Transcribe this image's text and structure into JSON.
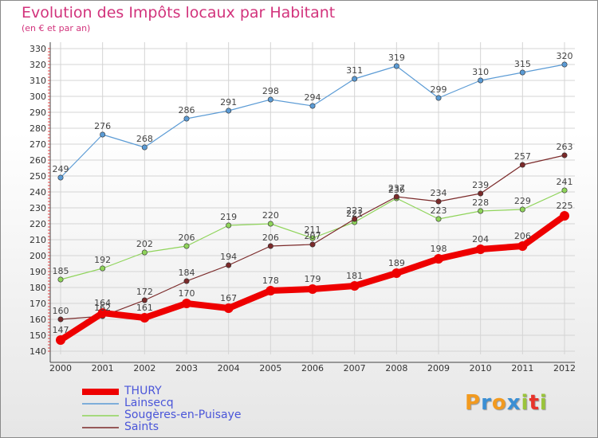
{
  "header": {
    "title": "Evolution des Impôts locaux par Habitant",
    "subtitle": "(en € et par an)"
  },
  "logo": {
    "letters": [
      {
        "ch": "P",
        "color": "#f29a1f"
      },
      {
        "ch": "r",
        "color": "#3a8fd4"
      },
      {
        "ch": "o",
        "color": "#f29a1f"
      },
      {
        "ch": "x",
        "color": "#3a8fd4"
      },
      {
        "ch": "i",
        "color": "#9ac43a"
      },
      {
        "ch": "t",
        "color": "#e8332a"
      },
      {
        "ch": "i",
        "color": "#9ac43a"
      }
    ]
  },
  "chart_data": {
    "type": "line",
    "x": [
      "2000",
      "2001",
      "2002",
      "2003",
      "2004",
      "2005",
      "2006",
      "2007",
      "2008",
      "2009",
      "2010",
      "2011",
      "2012"
    ],
    "ylim": [
      140,
      330
    ],
    "yticks": [
      140,
      150,
      160,
      170,
      180,
      190,
      200,
      210,
      220,
      230,
      240,
      250,
      260,
      270,
      280,
      290,
      300,
      310,
      320,
      330
    ],
    "grid": true,
    "legend_position": "bottom-left",
    "series": [
      {
        "name": "THURY",
        "color": "#ee0000",
        "emphasis": true,
        "values": [
          147,
          164,
          161,
          170,
          167,
          178,
          179,
          181,
          189,
          198,
          204,
          206,
          225
        ]
      },
      {
        "name": "Lainsecq",
        "color": "#5b9bd5",
        "emphasis": false,
        "values": [
          249,
          276,
          268,
          286,
          291,
          298,
          294,
          311,
          319,
          299,
          310,
          315,
          320
        ]
      },
      {
        "name": "Sougères-en-Puisaye",
        "color": "#8fd45a",
        "emphasis": false,
        "values": [
          185,
          192,
          202,
          206,
          219,
          220,
          211,
          221,
          236,
          223,
          228,
          229,
          241
        ]
      },
      {
        "name": "Saints",
        "color": "#7b2a2a",
        "emphasis": false,
        "values": [
          160,
          162,
          172,
          184,
          194,
          206,
          207,
          223,
          237,
          234,
          239,
          257,
          263
        ]
      }
    ]
  }
}
